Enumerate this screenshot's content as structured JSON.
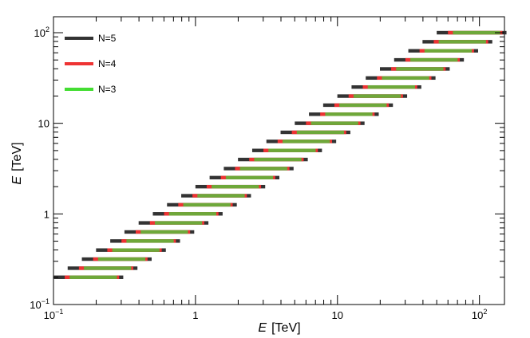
{
  "chart_data": {
    "type": "bar",
    "title": "",
    "xlabel_var": "E",
    "xlabel_unit": "[TeV]",
    "ylabel_var": "E",
    "ylabel_unit": "[TeV]",
    "x_scale": "log",
    "y_scale": "log",
    "xlim": [
      0.1,
      150
    ],
    "ylim": [
      0.1,
      150
    ],
    "x_ticks": [
      {
        "value": 0.1,
        "mantissa": "10",
        "exp": "−1"
      },
      {
        "value": 1,
        "mantissa": "1",
        "exp": ""
      },
      {
        "value": 10,
        "mantissa": "10",
        "exp": ""
      },
      {
        "value": 100,
        "mantissa": "10",
        "exp": "2"
      }
    ],
    "y_ticks": [
      {
        "value": 0.1,
        "mantissa": "10",
        "exp": "−1"
      },
      {
        "value": 1,
        "mantissa": "1",
        "exp": ""
      },
      {
        "value": 10,
        "mantissa": "10",
        "exp": ""
      },
      {
        "value": 100,
        "mantissa": "10",
        "exp": "2"
      }
    ],
    "grid": false,
    "legend_position": "top-left",
    "series": [
      {
        "name": "N=5",
        "color": "#333333"
      },
      {
        "name": "N=4",
        "color": "#ee3333"
      },
      {
        "name": "N=3",
        "color": "#44dd33"
      }
    ],
    "bands": {
      "y_start": 0.2,
      "y_end": 100,
      "count": 28,
      "N5": {
        "low_factor": 0.5,
        "high_factor": 1.55
      },
      "N4": {
        "low_factor": 0.6,
        "high_factor": 1.45
      },
      "N3": {
        "low_factor": 0.65,
        "high_factor": 1.4
      }
    },
    "overlap_color": "#6ea83a"
  }
}
